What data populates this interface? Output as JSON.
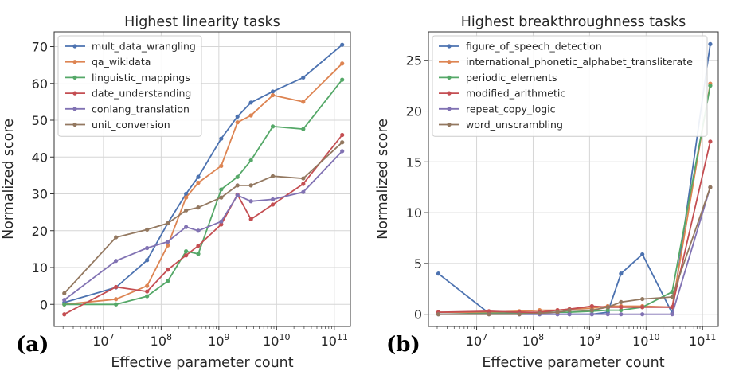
{
  "figure": {
    "left_tag": "(a)",
    "right_tag": "(b)"
  },
  "chart_data": [
    {
      "type": "line",
      "title": "Highest linearity tasks",
      "xlabel": "Effective parameter count",
      "ylabel": "Normalized score",
      "xscale": "log",
      "xlim": [
        1400000.0,
        190000000000.0
      ],
      "ylim": [
        -6,
        74
      ],
      "x_ticks": [
        10000000.0,
        100000000.0,
        1000000000.0,
        10000000000.0,
        100000000000.0
      ],
      "x_tick_labels": [
        {
          "base": "10",
          "exp": "7"
        },
        {
          "base": "10",
          "exp": "8"
        },
        {
          "base": "10",
          "exp": "9"
        },
        {
          "base": "10",
          "exp": "10"
        },
        {
          "base": "10",
          "exp": "11"
        }
      ],
      "y_ticks": [
        0,
        10,
        20,
        30,
        40,
        50,
        60,
        70
      ],
      "grid": true,
      "legend_position": "upper-left",
      "x": [
        2100000.0,
        16500000.0,
        57000000.0,
        130000000.0,
        270000000.0,
        440000000.0,
        1100000000.0,
        2100000000.0,
        3600000000.0,
        8600000000.0,
        29000000000.0,
        137000000000.0
      ],
      "series": [
        {
          "name": "mult_data_wrangling",
          "color": "#4c72b0",
          "values": [
            0.5,
            4.6,
            12.0,
            22.0,
            30.0,
            34.6,
            45.0,
            51.0,
            54.8,
            57.8,
            61.6,
            70.5
          ]
        },
        {
          "name": "qa_wikidata",
          "color": "#dd8452",
          "values": [
            0.0,
            1.4,
            5.0,
            16.0,
            29.0,
            33.0,
            37.6,
            49.4,
            51.3,
            56.8,
            55.0,
            65.4
          ]
        },
        {
          "name": "linguistic_mappings",
          "color": "#55a868",
          "values": [
            0.0,
            0.0,
            2.2,
            6.3,
            14.4,
            13.7,
            31.2,
            34.6,
            39.1,
            48.3,
            47.6,
            61.0
          ]
        },
        {
          "name": "date_understanding",
          "color": "#c44e52",
          "values": [
            -2.7,
            4.7,
            3.5,
            9.4,
            13.3,
            15.9,
            21.7,
            29.8,
            23.1,
            27.1,
            32.7,
            46.0
          ]
        },
        {
          "name": "conlang_translation",
          "color": "#8172b3",
          "values": [
            1.2,
            11.8,
            15.3,
            17.0,
            21.0,
            20.0,
            22.5,
            29.6,
            28.0,
            28.5,
            30.5,
            41.6
          ]
        },
        {
          "name": "unit_conversion",
          "color": "#937860",
          "values": [
            3.0,
            18.2,
            20.3,
            22.0,
            25.5,
            26.3,
            29.0,
            32.3,
            32.3,
            34.8,
            34.2,
            44.0
          ]
        }
      ]
    },
    {
      "type": "line",
      "title": "Highest breakthroughness tasks",
      "xlabel": "Effective parameter count",
      "ylabel": "Normalized score",
      "xscale": "log",
      "xlim": [
        1400000.0,
        190000000000.0
      ],
      "ylim": [
        -1.2,
        27.8
      ],
      "x_ticks": [
        10000000.0,
        100000000.0,
        1000000000.0,
        10000000000.0,
        100000000000.0
      ],
      "x_tick_labels": [
        {
          "base": "10",
          "exp": "7"
        },
        {
          "base": "10",
          "exp": "8"
        },
        {
          "base": "10",
          "exp": "9"
        },
        {
          "base": "10",
          "exp": "10"
        },
        {
          "base": "10",
          "exp": "11"
        }
      ],
      "y_ticks": [
        0,
        5,
        10,
        15,
        20,
        25
      ],
      "grid": true,
      "legend_position": "upper-left",
      "x": [
        2100000.0,
        16500000.0,
        57000000.0,
        130000000.0,
        270000000.0,
        440000000.0,
        1100000000.0,
        2100000000.0,
        3600000000.0,
        8600000000.0,
        29000000000.0,
        137000000000.0
      ],
      "series": [
        {
          "name": "figure_of_speech_detection",
          "color": "#4c72b0",
          "values": [
            4.0,
            0.1,
            0.0,
            0.0,
            0.0,
            0.0,
            0.0,
            0.2,
            4.0,
            5.9,
            0.1,
            26.6
          ]
        },
        {
          "name": "international_phonetic_alphabet_transliterate",
          "color": "#dd8452",
          "values": [
            0.2,
            0.2,
            0.3,
            0.4,
            0.4,
            0.5,
            0.6,
            0.8,
            0.8,
            0.8,
            0.7,
            22.7
          ]
        },
        {
          "name": "periodic_elements",
          "color": "#55a868",
          "values": [
            0.0,
            0.1,
            0.1,
            0.2,
            0.2,
            0.2,
            0.3,
            0.4,
            0.4,
            0.7,
            2.2,
            22.5
          ]
        },
        {
          "name": "modified_arithmetic",
          "color": "#c44e52",
          "values": [
            0.2,
            0.3,
            0.2,
            0.2,
            0.4,
            0.5,
            0.8,
            0.7,
            0.7,
            0.7,
            0.7,
            17.0
          ]
        },
        {
          "name": "repeat_copy_logic",
          "color": "#8172b3",
          "values": [
            0.0,
            0.0,
            0.0,
            0.0,
            0.0,
            0.0,
            0.0,
            0.0,
            0.0,
            0.0,
            0.0,
            12.5
          ]
        },
        {
          "name": "word_unscrambling",
          "color": "#937860",
          "values": [
            0.0,
            0.0,
            0.0,
            0.1,
            0.2,
            0.4,
            0.4,
            0.7,
            1.2,
            1.5,
            1.7,
            12.5
          ]
        }
      ]
    }
  ]
}
